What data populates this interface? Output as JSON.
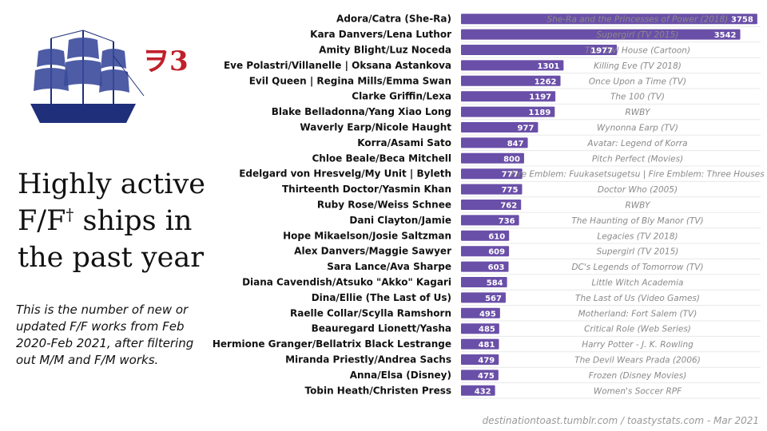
{
  "title_main": "Highly active F/F",
  "title_mark": "†",
  "title_rest": " ships in the past year",
  "subtitle": "This is the number of new or updated F/F works from Feb 2020-Feb 2021, after filtering out M/M and F/M works.",
  "logo_text": "ヲ3",
  "footer": "destinationtoast.tumblr.com / toastystats.com - Mar 2021",
  "colors": {
    "bar": "#6a4fa8",
    "value_text": "#ffffff",
    "fandom_text": "#8a8a8a",
    "grid": "#e8e8e8",
    "ship": "#1f2f7a",
    "logo": "#c0202a"
  },
  "chart_data": {
    "type": "bar",
    "orientation": "horizontal",
    "categories": [
      "Adora/Catra (She-Ra)",
      "Kara Danvers/Lena Luthor",
      "Amity Blight/Luz Noceda",
      "Eve Polastri/Villanelle | Oksana Astankova",
      "Evil Queen | Regina Mills/Emma Swan",
      "Clarke Griffin/Lexa",
      "Blake Belladonna/Yang Xiao Long",
      "Waverly Earp/Nicole Haught",
      "Korra/Asami Sato",
      "Chloe Beale/Beca Mitchell",
      "Edelgard von Hresvelg/My Unit | Byleth",
      "Thirteenth Doctor/Yasmin Khan",
      "Ruby Rose/Weiss Schnee",
      "Dani Clayton/Jamie",
      "Hope Mikaelson/Josie Saltzman",
      "Alex Danvers/Maggie Sawyer",
      "Sara Lance/Ava Sharpe",
      "Diana Cavendish/Atsuko \"Akko\" Kagari",
      "Dina/Ellie (The Last of Us)",
      "Raelle Collar/Scylla Ramshorn",
      "Beauregard Lionett/Yasha",
      "Hermione Granger/Bellatrix Black Lestrange",
      "Miranda Priestly/Andrea Sachs",
      "Anna/Elsa (Disney)",
      "Tobin Heath/Christen Press"
    ],
    "values": [
      3758,
      3542,
      1977,
      1301,
      1262,
      1197,
      1189,
      977,
      847,
      800,
      777,
      775,
      762,
      736,
      610,
      609,
      603,
      584,
      567,
      495,
      485,
      481,
      479,
      475,
      432
    ],
    "value_labels": [
      "3758",
      "3542",
      "1977",
      "1301",
      "1262",
      "1197",
      "1189",
      "977",
      "847",
      "800",
      "777",
      "775",
      "762",
      "736",
      "610",
      "609",
      "603",
      "584",
      "567",
      "495",
      "485",
      "481",
      "479",
      "475",
      "432"
    ],
    "fandoms": [
      "She-Ra and the Princesses of Power (2018)",
      "Supergirl (TV 2015)",
      "The Owl House (Cartoon)",
      "Killing Eve (TV 2018)",
      "Once Upon a Time (TV)",
      "The 100 (TV)",
      "RWBY",
      "Wynonna Earp (TV)",
      "Avatar: Legend of Korra",
      "Pitch Perfect (Movies)",
      "Fire Emblem: Fuukasetsugetsu | Fire Emblem: Three Houses",
      "Doctor Who (2005)",
      "RWBY",
      "The Haunting of Bly Manor (TV)",
      "Legacies (TV 2018)",
      "Supergirl (TV 2015)",
      "DC's Legends of Tomorrow (TV)",
      "Little Witch Academia",
      "The Last of Us (Video Games)",
      "Motherland: Fort Salem (TV)",
      "Critical Role (Web Series)",
      "Harry Potter - J. K. Rowling",
      "The Devil Wears Prada (2006)",
      "Frozen (Disney Movies)",
      "Women's Soccer RPF"
    ],
    "xlim": [
      0,
      3800
    ],
    "grid": true
  }
}
